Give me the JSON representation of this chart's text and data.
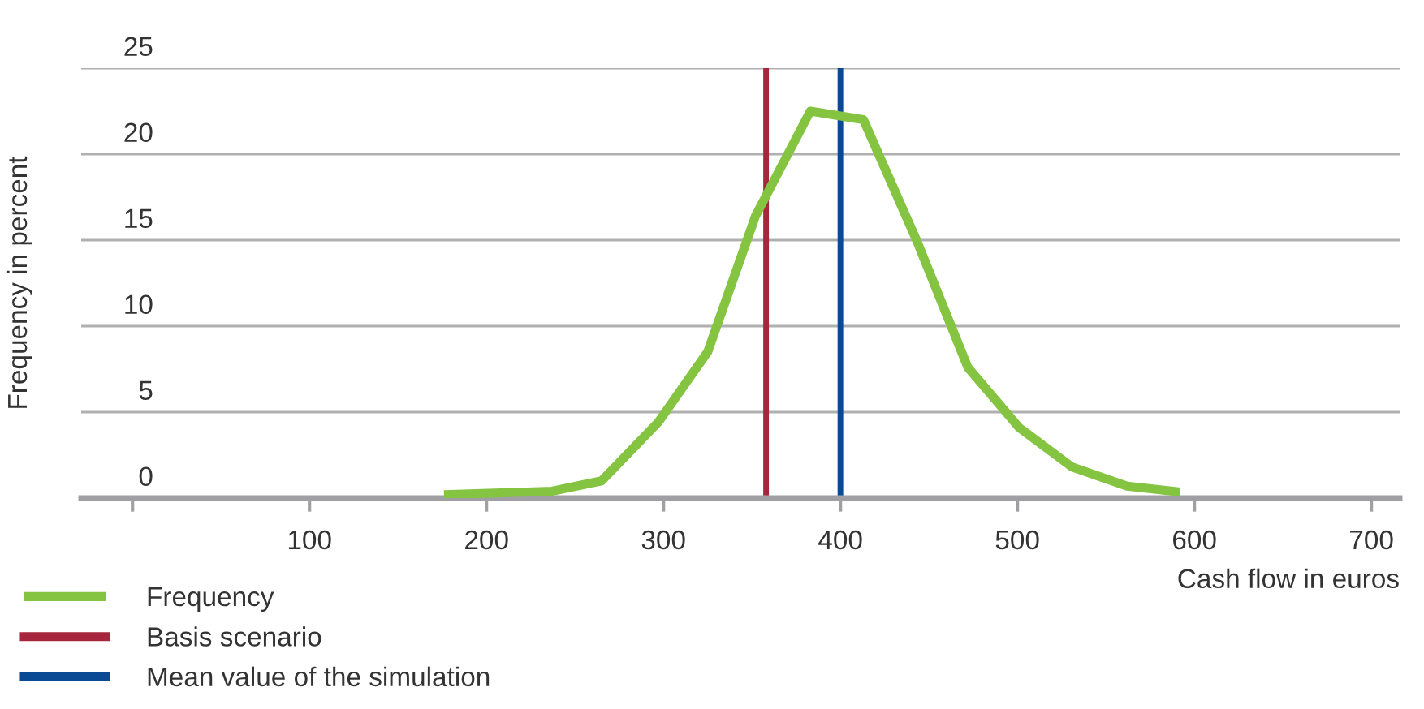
{
  "chart_data": {
    "type": "line",
    "xlabel": "Cash flow in euros",
    "ylabel": "Frequency in percent",
    "series": [
      {
        "name": "Frequency",
        "color": "#84c441",
        "x": [
          176,
          237,
          265,
          297,
          325,
          352,
          383,
          413,
          443,
          472,
          501,
          531,
          562,
          592
        ],
        "values": [
          0.2,
          0.4,
          1.0,
          4.4,
          8.5,
          16.4,
          22.5,
          22.0,
          15.0,
          7.6,
          4.1,
          1.8,
          0.7,
          0.35
        ]
      }
    ],
    "ref_lines": [
      {
        "axis": "x",
        "value": 358,
        "label": "Basis scenario",
        "color": "#a6273d"
      },
      {
        "axis": "x",
        "value": 400,
        "label": "Mean value of the simulation",
        "color": "#0a4a94"
      }
    ],
    "xlim": [
      -29,
      716
    ],
    "xticks": [
      {
        "value": 0,
        "label": null
      },
      100,
      200,
      300,
      400,
      500,
      600,
      700
    ],
    "ylim": [
      0,
      25
    ],
    "yticks": [
      0,
      5,
      10,
      15,
      20,
      25
    ],
    "grid": "y",
    "legend": "bottom",
    "marker": "none",
    "line_style": "solid"
  }
}
